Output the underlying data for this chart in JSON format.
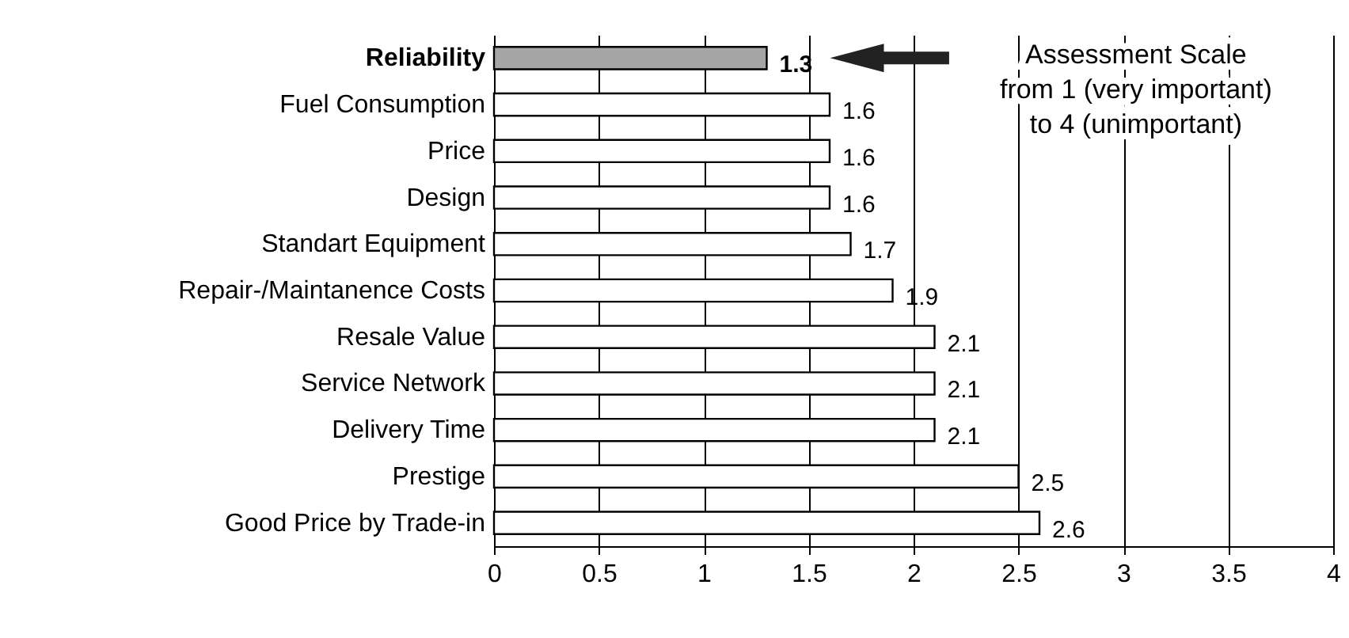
{
  "chart_data": {
    "type": "bar",
    "orientation": "horizontal",
    "categories": [
      "Reliability",
      "Fuel Consumption",
      "Price",
      "Design",
      "Standart Equipment",
      "Repair-/Maintanence Costs",
      "Resale Value",
      "Service Network",
      "Delivery Time",
      "Prestige",
      "Good Price by Trade-in"
    ],
    "values": [
      1.3,
      1.6,
      1.6,
      1.6,
      1.7,
      1.9,
      2.1,
      2.1,
      2.1,
      2.5,
      2.6
    ],
    "colors": [
      "#a6a6a6",
      "#ffffff",
      "#ffffff",
      "#ffffff",
      "#ffffff",
      "#ffffff",
      "#ffffff",
      "#ffffff",
      "#ffffff",
      "#ffffff",
      "#ffffff"
    ],
    "xlim": [
      0,
      4
    ],
    "xticks": [
      0,
      0.5,
      1,
      1.5,
      2,
      2.5,
      3,
      3.5,
      4
    ],
    "grid": "x",
    "data_labels": true,
    "annotations": [
      "Assessment Scale\nfrom 1 (very important)\nto 4 (unimportant)"
    ]
  }
}
